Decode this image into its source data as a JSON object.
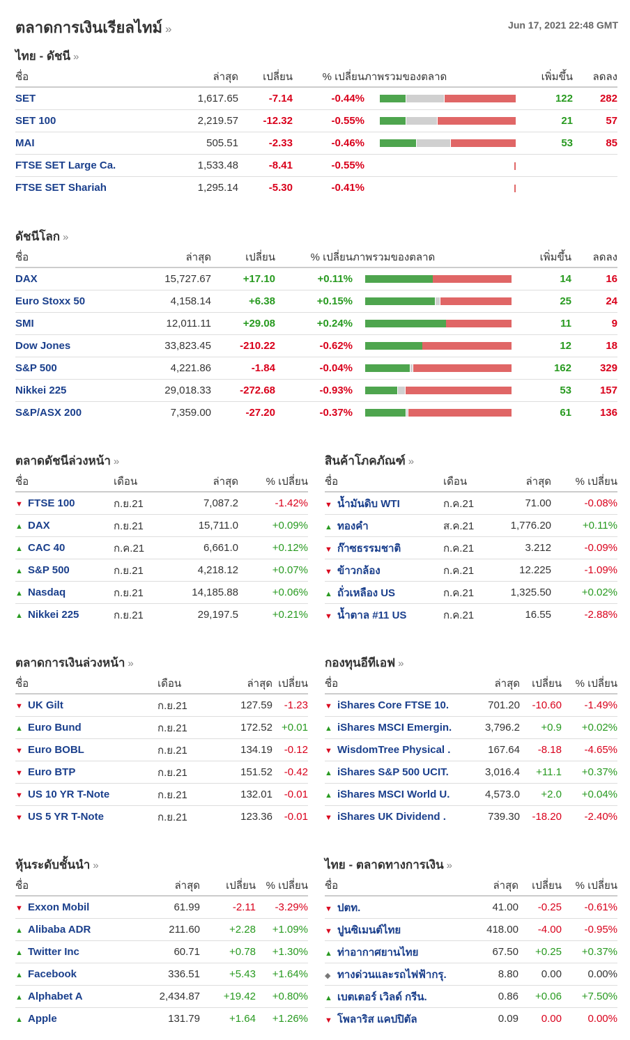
{
  "header": {
    "title": "ตลาดการเงินเรียลไทม์",
    "chevron": "»",
    "timestamp": "Jun 17, 2021 22:48 GMT"
  },
  "colors": {
    "up": "#289a20",
    "down": "#d9001b",
    "name": "#1a3f8c"
  },
  "thai_indices": {
    "title": "ไทย - ดัชนี",
    "headers": [
      "ชื่อ",
      "ล่าสุด",
      "เปลี่ยน",
      "% เปลี่ยน",
      "ภาพรวมของตลาด",
      "เพิ่มขึ้น",
      "ลดลง"
    ],
    "rows": [
      {
        "name": "SET",
        "last": "1,617.65",
        "chg": "-7.14",
        "pct": "-0.44%",
        "up": "122",
        "down": "282",
        "bar": {
          "g": 0.19,
          "y": 0.28,
          "r": 0.53
        }
      },
      {
        "name": "SET 100",
        "last": "2,219.57",
        "chg": "-12.32",
        "pct": "-0.55%",
        "up": "21",
        "down": "57",
        "bar": {
          "g": 0.19,
          "y": 0.23,
          "r": 0.58
        }
      },
      {
        "name": "MAI",
        "last": "505.51",
        "chg": "-2.33",
        "pct": "-0.46%",
        "up": "53",
        "down": "85",
        "bar": {
          "g": 0.27,
          "y": 0.25,
          "r": 0.48
        }
      },
      {
        "name": "FTSE SET Large Ca.",
        "last": "1,533.48",
        "chg": "-8.41",
        "pct": "-0.55%",
        "up": "",
        "down": "",
        "bar": null
      },
      {
        "name": "FTSE SET Shariah",
        "last": "1,295.14",
        "chg": "-5.30",
        "pct": "-0.41%",
        "up": "",
        "down": "",
        "bar": null
      }
    ]
  },
  "world_indices": {
    "title": "ดัชนีโลก",
    "headers": [
      "ชื่อ",
      "ล่าสุด",
      "เปลี่ยน",
      "% เปลี่ยน",
      "ภาพรวมของตลาด",
      "เพิ่มขึ้น",
      "ลดลง"
    ],
    "rows": [
      {
        "name": "DAX",
        "last": "15,727.67",
        "chg": "+17.10",
        "pct": "+0.11%",
        "up": "14",
        "down": "16",
        "bar": {
          "g": 0.46,
          "y": 0.0,
          "r": 0.54
        }
      },
      {
        "name": "Euro Stoxx 50",
        "last": "4,158.14",
        "chg": "+6.38",
        "pct": "+0.15%",
        "up": "25",
        "down": "24",
        "bar": {
          "g": 0.48,
          "y": 0.03,
          "r": 0.49
        }
      },
      {
        "name": "SMI",
        "last": "12,011.11",
        "chg": "+29.08",
        "pct": "+0.24%",
        "up": "11",
        "down": "9",
        "bar": {
          "g": 0.55,
          "y": 0.0,
          "r": 0.45
        }
      },
      {
        "name": "Dow Jones",
        "last": "33,823.45",
        "chg": "-210.22",
        "pct": "-0.62%",
        "up": "12",
        "down": "18",
        "bar": {
          "g": 0.39,
          "y": 0.0,
          "r": 0.61
        }
      },
      {
        "name": "S&P 500",
        "last": "4,221.86",
        "chg": "-1.84",
        "pct": "-0.04%",
        "up": "162",
        "down": "329",
        "bar": {
          "g": 0.31,
          "y": 0.01,
          "r": 0.68
        }
      },
      {
        "name": "Nikkei 225",
        "last": "29,018.33",
        "chg": "-272.68",
        "pct": "-0.93%",
        "up": "53",
        "down": "157",
        "bar": {
          "g": 0.22,
          "y": 0.05,
          "r": 0.73
        }
      },
      {
        "name": "S&P/ASX 200",
        "last": "7,359.00",
        "chg": "-27.20",
        "pct": "-0.37%",
        "up": "61",
        "down": "136",
        "bar": {
          "g": 0.28,
          "y": 0.01,
          "r": 0.71
        }
      }
    ]
  },
  "index_futures": {
    "title": "ตลาดดัชนีล่วงหน้า",
    "headers": [
      "ชื่อ",
      "เดือน",
      "ล่าสุด",
      "% เปลี่ยน"
    ],
    "rows": [
      {
        "dir": "down",
        "name": "FTSE 100",
        "month": "ก.ย.21",
        "last": "7,087.2",
        "pct": "-1.42%"
      },
      {
        "dir": "up",
        "name": "DAX",
        "month": "ก.ย.21",
        "last": "15,711.0",
        "pct": "+0.09%"
      },
      {
        "dir": "up",
        "name": "CAC 40",
        "month": "ก.ค.21",
        "last": "6,661.0",
        "pct": "+0.12%"
      },
      {
        "dir": "up",
        "name": "S&P 500",
        "month": "ก.ย.21",
        "last": "4,218.12",
        "pct": "+0.07%"
      },
      {
        "dir": "up",
        "name": "Nasdaq",
        "month": "ก.ย.21",
        "last": "14,185.88",
        "pct": "+0.06%"
      },
      {
        "dir": "up",
        "name": "Nikkei 225",
        "month": "ก.ย.21",
        "last": "29,197.5",
        "pct": "+0.21%"
      }
    ]
  },
  "commodities": {
    "title": "สินค้าโภคภัณฑ์",
    "headers": [
      "ชื่อ",
      "เดือน",
      "ล่าสุด",
      "% เปลี่ยน"
    ],
    "rows": [
      {
        "dir": "down",
        "name": "น้ำมันดิบ WTI",
        "month": "ก.ค.21",
        "last": "71.00",
        "pct": "-0.08%"
      },
      {
        "dir": "up",
        "name": "ทองคำ",
        "month": "ส.ค.21",
        "last": "1,776.20",
        "pct": "+0.11%"
      },
      {
        "dir": "down",
        "name": "ก๊าซธรรมชาติ",
        "month": "ก.ค.21",
        "last": "3.212",
        "pct": "-0.09%"
      },
      {
        "dir": "down",
        "name": "ข้าวกล้อง",
        "month": "ก.ค.21",
        "last": "12.225",
        "pct": "-1.09%"
      },
      {
        "dir": "up",
        "name": "ถั่วเหลือง US",
        "month": "ก.ค.21",
        "last": "1,325.50",
        "pct": "+0.02%"
      },
      {
        "dir": "down",
        "name": "น้ำตาล #11 US",
        "month": "ก.ค.21",
        "last": "16.55",
        "pct": "-2.88%"
      }
    ]
  },
  "bond_futures": {
    "title": "ตลาดการเงินล่วงหน้า",
    "headers": [
      "ชื่อ",
      "เดือน",
      "ล่าสุด",
      "เปลี่ยน"
    ],
    "rows": [
      {
        "dir": "down",
        "name": "UK Gilt",
        "month": "ก.ย.21",
        "last": "127.59",
        "pct": "-1.23"
      },
      {
        "dir": "up",
        "name": "Euro Bund",
        "month": "ก.ย.21",
        "last": "172.52",
        "pct": "+0.01"
      },
      {
        "dir": "down",
        "name": "Euro BOBL",
        "month": "ก.ย.21",
        "last": "134.19",
        "pct": "-0.12"
      },
      {
        "dir": "down",
        "name": "Euro BTP",
        "month": "ก.ย.21",
        "last": "151.52",
        "pct": "-0.42"
      },
      {
        "dir": "down",
        "name": "US 10 YR T-Note",
        "month": "ก.ย.21",
        "last": "132.01",
        "pct": "-0.01"
      },
      {
        "dir": "down",
        "name": "US 5 YR T-Note",
        "month": "ก.ย.21",
        "last": "123.36",
        "pct": "-0.01"
      }
    ]
  },
  "etfs": {
    "title": "กองทุนอีทีเอฟ",
    "headers": [
      "ชื่อ",
      "ล่าสุด",
      "เปลี่ยน",
      "% เปลี่ยน"
    ],
    "rows": [
      {
        "dir": "down",
        "name": "iShares Core FTSE 10.",
        "last": "701.20",
        "chg": "-10.60",
        "pct": "-1.49%"
      },
      {
        "dir": "up",
        "name": "iShares MSCI Emergin.",
        "last": "3,796.2",
        "chg": "+0.9",
        "pct": "+0.02%"
      },
      {
        "dir": "down",
        "name": "WisdomTree Physical .",
        "last": "167.64",
        "chg": "-8.18",
        "pct": "-4.65%"
      },
      {
        "dir": "up",
        "name": "iShares S&P 500 UCIT.",
        "last": "3,016.4",
        "chg": "+11.1",
        "pct": "+0.37%"
      },
      {
        "dir": "up",
        "name": "iShares MSCI World U.",
        "last": "4,573.0",
        "chg": "+2.0",
        "pct": "+0.04%"
      },
      {
        "dir": "down",
        "name": "iShares UK Dividend .",
        "last": "739.30",
        "chg": "-18.20",
        "pct": "-2.40%"
      }
    ]
  },
  "leading_stocks": {
    "title": "หุ้นระดับชั้นนำ",
    "headers": [
      "ชื่อ",
      "ล่าสุด",
      "เปลี่ยน",
      "% เปลี่ยน"
    ],
    "rows": [
      {
        "dir": "down",
        "name": "Exxon Mobil",
        "last": "61.99",
        "chg": "-2.11",
        "pct": "-3.29%"
      },
      {
        "dir": "up",
        "name": "Alibaba ADR",
        "last": "211.60",
        "chg": "+2.28",
        "pct": "+1.09%"
      },
      {
        "dir": "up",
        "name": "Twitter Inc",
        "last": "60.71",
        "chg": "+0.78",
        "pct": "+1.30%"
      },
      {
        "dir": "up",
        "name": "Facebook",
        "last": "336.51",
        "chg": "+5.43",
        "pct": "+1.64%"
      },
      {
        "dir": "up",
        "name": "Alphabet A",
        "last": "2,434.87",
        "chg": "+19.42",
        "pct": "+0.80%"
      },
      {
        "dir": "up",
        "name": "Apple",
        "last": "131.79",
        "chg": "+1.64",
        "pct": "+1.26%"
      }
    ]
  },
  "thai_market": {
    "title": "ไทย - ตลาดทางการเงิน",
    "headers": [
      "ชื่อ",
      "ล่าสุด",
      "เปลี่ยน",
      "% เปลี่ยน"
    ],
    "rows": [
      {
        "dir": "down",
        "name": "ปตท.",
        "last": "41.00",
        "chg": "-0.25",
        "pct": "-0.61%"
      },
      {
        "dir": "down",
        "name": "ปูนซิเมนต์ไทย",
        "last": "418.00",
        "chg": "-4.00",
        "pct": "-0.95%"
      },
      {
        "dir": "up",
        "name": "ท่าอากาศยานไทย",
        "last": "67.50",
        "chg": "+0.25",
        "pct": "+0.37%"
      },
      {
        "dir": "flat",
        "name": "ทางด่วนและรถไฟฟ้ากรุ.",
        "last": "8.80",
        "chg": "0.00",
        "pct": "0.00%"
      },
      {
        "dir": "up",
        "name": "เบตเตอร์ เวิลด์ กรีน.",
        "last": "0.86",
        "chg": "+0.06",
        "pct": "+7.50%"
      },
      {
        "dir": "down",
        "name": "โพลาริส แคปปิตัล",
        "last": "0.09",
        "chg": "0.00",
        "pct": "0.00%"
      }
    ]
  }
}
